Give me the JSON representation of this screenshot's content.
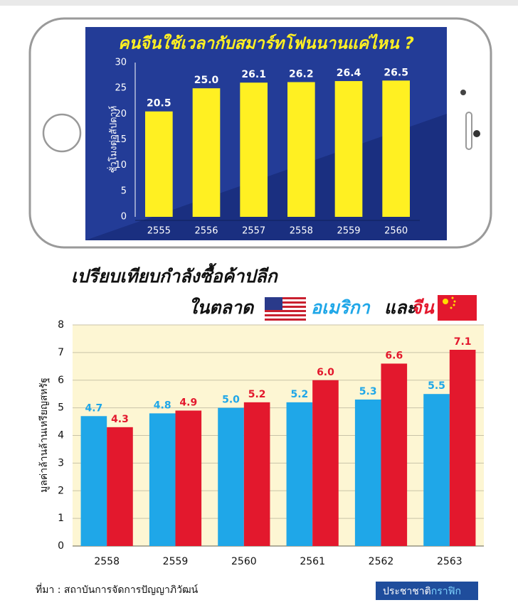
{
  "chart_data": [
    {
      "type": "bar",
      "title": "คนจีนใช้เวลากับสมาร์ทโฟนนานแค่ไหน ?",
      "y_label": "ชั่วโมงต่อสัปดาห์",
      "categories": [
        "2555",
        "2556",
        "2557",
        "2558",
        "2559",
        "2560"
      ],
      "values": [
        20.5,
        25.0,
        26.1,
        26.2,
        26.4,
        26.5
      ],
      "value_labels": [
        "20.5",
        "25.0",
        "26.1",
        "26.2",
        "26.4",
        "26.5"
      ],
      "color": "#fff022",
      "ylim": [
        0,
        30
      ],
      "yticks": [
        0,
        5,
        10,
        15,
        20,
        25,
        30
      ],
      "grid": false
    },
    {
      "type": "bar",
      "title": "เปรียบเทียบกำลังซื้อค้าปลีก",
      "subtitle": "ในตลาด",
      "connector": "และ",
      "y_label": "มูลค่าล้านล้านเหรียญสหรัฐ",
      "categories": [
        "2558",
        "2559",
        "2560",
        "2561",
        "2562",
        "2563"
      ],
      "series": [
        {
          "name": "อเมริกา",
          "color": "#1fa7e8",
          "values": [
            4.7,
            4.8,
            5.0,
            5.2,
            5.3,
            5.5
          ],
          "value_labels": [
            "4.7",
            "4.8",
            "5.0",
            "5.2",
            "5.3",
            "5.5"
          ]
        },
        {
          "name": "จีน",
          "color": "#e3182d",
          "values": [
            4.3,
            4.9,
            5.2,
            6.0,
            6.6,
            7.1
          ],
          "value_labels": [
            "4.3",
            "4.9",
            "5.2",
            "6.0",
            "6.6",
            "7.1"
          ]
        }
      ],
      "ylim": [
        0,
        8
      ],
      "yticks": [
        0,
        1,
        2,
        3,
        4,
        5,
        6,
        7,
        8
      ],
      "grid": true
    }
  ],
  "source": "ที่มา : สถาบันการจัดการปัญญาภิวัฒน์",
  "brand": {
    "name": "ประชาชาติ",
    "accent": "กราฟิก"
  }
}
